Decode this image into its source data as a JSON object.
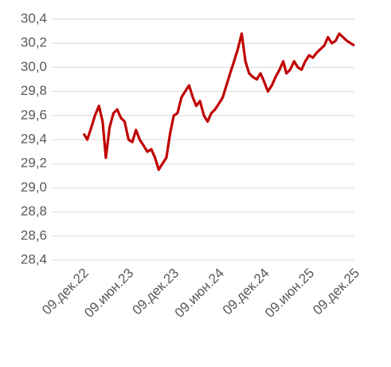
{
  "chart_data": {
    "type": "line",
    "x": [
      "2022-12-09",
      "2022-12-24",
      "2023-01-09",
      "2023-01-24",
      "2023-02-09",
      "2023-02-24",
      "2023-03-09",
      "2023-03-24",
      "2023-04-09",
      "2023-04-24",
      "2023-05-09",
      "2023-05-24",
      "2023-06-09",
      "2023-06-24",
      "2023-07-09",
      "2023-07-24",
      "2023-08-09",
      "2023-08-24",
      "2023-09-09",
      "2023-09-24",
      "2023-10-09",
      "2023-10-24",
      "2023-11-09",
      "2023-11-24",
      "2023-12-09",
      "2023-12-24",
      "2024-01-09",
      "2024-01-24",
      "2024-02-09",
      "2024-02-24",
      "2024-03-09",
      "2024-03-24",
      "2024-04-09",
      "2024-04-24",
      "2024-05-09",
      "2024-05-24",
      "2024-06-09",
      "2024-06-24",
      "2024-07-09",
      "2024-07-24",
      "2024-08-09",
      "2024-08-24",
      "2024-09-09",
      "2024-09-24",
      "2024-10-09",
      "2024-10-24",
      "2024-11-09",
      "2024-11-24",
      "2024-12-09",
      "2024-12-24",
      "2025-01-09",
      "2025-01-24",
      "2025-02-09",
      "2025-02-24",
      "2025-03-09",
      "2025-03-24",
      "2025-04-09",
      "2025-04-24",
      "2025-05-09",
      "2025-05-24",
      "2025-06-09",
      "2025-06-24",
      "2025-07-09",
      "2025-07-24",
      "2025-08-09",
      "2025-08-24",
      "2025-09-09",
      "2025-09-24",
      "2025-10-09",
      "2025-10-24",
      "2025-11-09",
      "2025-11-24",
      "2025-12-09"
    ],
    "series": [
      {
        "color": "#c00000",
        "values": [
          29.45,
          29.4,
          29.5,
          29.6,
          29.68,
          29.55,
          29.25,
          29.5,
          29.62,
          29.65,
          29.58,
          29.55,
          29.4,
          29.38,
          29.48,
          29.4,
          29.35,
          29.3,
          29.32,
          29.25,
          29.15,
          29.2,
          29.25,
          29.45,
          29.6,
          29.62,
          29.75,
          29.8,
          29.85,
          29.75,
          29.68,
          29.72,
          29.6,
          29.55,
          29.62,
          29.65,
          29.7,
          29.75,
          29.85,
          29.95,
          30.05,
          30.15,
          30.28,
          30.05,
          29.95,
          29.92,
          29.9,
          29.95,
          29.88,
          29.8,
          29.85,
          29.92,
          29.98,
          30.05,
          29.95,
          29.98,
          30.05,
          30.0,
          29.98,
          30.05,
          30.1,
          30.08,
          30.12,
          30.15,
          30.18,
          30.25,
          30.2,
          30.22,
          30.28,
          30.25,
          30.22,
          30.2,
          30.18
        ]
      }
    ],
    "xlim": [
      "2022-12-09",
      "2025-12-09"
    ],
    "xticks": [
      {
        "value": "2022-12-09",
        "label": "09.дек.22"
      },
      {
        "value": "2023-06-09",
        "label": "09.июн.23"
      },
      {
        "value": "2023-12-09",
        "label": "09.дек.23"
      },
      {
        "value": "2024-06-09",
        "label": "09.июн.24"
      },
      {
        "value": "2024-12-09",
        "label": "09.дек.24"
      },
      {
        "value": "2025-06-09",
        "label": "09.июн.25"
      },
      {
        "value": "2025-12-09",
        "label": "09.дек.25"
      }
    ],
    "ylim": [
      28.4,
      30.4
    ],
    "yticks": [
      {
        "value": 28.4,
        "label": "28,4"
      },
      {
        "value": 28.6,
        "label": "28,6"
      },
      {
        "value": 28.8,
        "label": "28,8"
      },
      {
        "value": 29.0,
        "label": "29,0"
      },
      {
        "value": 29.2,
        "label": "29,2"
      },
      {
        "value": 29.4,
        "label": "29,4"
      },
      {
        "value": 29.6,
        "label": "29,6"
      },
      {
        "value": 29.8,
        "label": "29,8"
      },
      {
        "value": 30.0,
        "label": "30,0"
      },
      {
        "value": 30.2,
        "label": "30,2"
      },
      {
        "value": 30.4,
        "label": "30,4"
      }
    ],
    "grid": true
  }
}
